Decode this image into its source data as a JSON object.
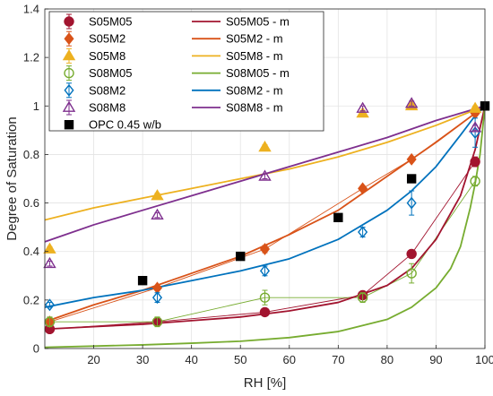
{
  "chart_data": {
    "type": "scatter",
    "xlabel": "RH [%]",
    "ylabel": "Degree of Saturation",
    "xlim": [
      10,
      100
    ],
    "ylim": [
      0,
      1.4
    ],
    "xticks": [
      20,
      30,
      40,
      50,
      60,
      70,
      80,
      90,
      100
    ],
    "yticks": [
      0,
      0.2,
      0.4,
      0.6,
      0.8,
      1,
      1.2,
      1.4
    ],
    "ytick_labels": [
      "0",
      "0.2",
      "0.4",
      "0.6",
      "0.8",
      "1",
      "1.2",
      "1.4"
    ],
    "grid": true,
    "legend_position": "top-left, two columns",
    "series": [
      {
        "name": "S05M05",
        "kind": "points",
        "marker": "circle-filled",
        "color": "#A2142F",
        "x": [
          11,
          33,
          55,
          75,
          85,
          98
        ],
        "y": [
          0.08,
          0.11,
          0.15,
          0.22,
          0.39,
          0.77
        ],
        "err": [
          0.01,
          0.01,
          0.01,
          0.01,
          0.015,
          0.02
        ]
      },
      {
        "name": "S05M05 - m",
        "kind": "line",
        "color": "#A2142F",
        "x": [
          10,
          20,
          30,
          40,
          50,
          60,
          70,
          80,
          85,
          90,
          95,
          98,
          100
        ],
        "y": [
          0.08,
          0.09,
          0.1,
          0.115,
          0.13,
          0.155,
          0.19,
          0.26,
          0.33,
          0.45,
          0.63,
          0.82,
          1.0
        ]
      },
      {
        "name": "S05M2",
        "kind": "points",
        "marker": "diamond-filled",
        "color": "#D95319",
        "x": [
          11,
          33,
          55,
          75,
          85,
          98
        ],
        "y": [
          0.11,
          0.25,
          0.41,
          0.66,
          0.78,
          0.97
        ],
        "err": [
          0.01,
          0.01,
          0.015,
          0.01,
          0.01,
          0.01
        ]
      },
      {
        "name": "S05M2 - m",
        "kind": "line",
        "color": "#D95319",
        "x": [
          10,
          20,
          30,
          40,
          50,
          60,
          70,
          80,
          90,
          100
        ],
        "y": [
          0.11,
          0.18,
          0.24,
          0.31,
          0.38,
          0.47,
          0.57,
          0.71,
          0.85,
          1.0
        ]
      },
      {
        "name": "S05M8",
        "kind": "points",
        "marker": "triangle-filled",
        "color": "#EDB120",
        "x": [
          11,
          33,
          55,
          75,
          85,
          98
        ],
        "y": [
          0.41,
          0.63,
          0.83,
          0.97,
          1.0,
          0.99
        ],
        "err": [
          0.01,
          0.01,
          0.01,
          0.01,
          0.01,
          0.01
        ]
      },
      {
        "name": "S05M8 - m",
        "kind": "line",
        "color": "#EDB120",
        "x": [
          10,
          20,
          30,
          40,
          50,
          60,
          70,
          80,
          90,
          100
        ],
        "y": [
          0.53,
          0.58,
          0.62,
          0.66,
          0.7,
          0.74,
          0.79,
          0.85,
          0.92,
          1.0
        ]
      },
      {
        "name": "S08M05",
        "kind": "points",
        "marker": "circle-open",
        "color": "#77AC30",
        "x": [
          11,
          33,
          55,
          75,
          85,
          98
        ],
        "y": [
          0.11,
          0.11,
          0.21,
          0.21,
          0.31,
          0.69
        ],
        "err": [
          0.02,
          0.02,
          0.03,
          0.02,
          0.04,
          0.02
        ]
      },
      {
        "name": "S08M05 - m",
        "kind": "line",
        "color": "#77AC30",
        "x": [
          10,
          20,
          30,
          40,
          50,
          60,
          70,
          80,
          85,
          90,
          93,
          95,
          97,
          98,
          99,
          100
        ],
        "y": [
          0.005,
          0.01,
          0.015,
          0.022,
          0.03,
          0.045,
          0.07,
          0.12,
          0.17,
          0.25,
          0.33,
          0.42,
          0.58,
          0.68,
          0.8,
          1.0
        ]
      },
      {
        "name": "S08M2",
        "kind": "points",
        "marker": "diamond-open",
        "color": "#0072BD",
        "x": [
          11,
          33,
          55,
          75,
          85,
          98
        ],
        "y": [
          0.18,
          0.21,
          0.32,
          0.48,
          0.6,
          0.89
        ],
        "err": [
          0.01,
          0.02,
          0.02,
          0.02,
          0.05,
          0.06
        ]
      },
      {
        "name": "S08M2 - m",
        "kind": "line",
        "color": "#0072BD",
        "x": [
          10,
          20,
          30,
          40,
          50,
          60,
          70,
          80,
          85,
          90,
          95,
          98,
          100
        ],
        "y": [
          0.17,
          0.21,
          0.24,
          0.28,
          0.32,
          0.37,
          0.45,
          0.57,
          0.65,
          0.75,
          0.88,
          0.96,
          1.0
        ]
      },
      {
        "name": "S08M8",
        "kind": "points",
        "marker": "triangle-open",
        "color": "#7E2F8E",
        "x": [
          11,
          33,
          55,
          75,
          85,
          98
        ],
        "y": [
          0.35,
          0.55,
          0.71,
          0.99,
          1.01,
          0.91
        ],
        "err": [
          0.01,
          0.01,
          0.01,
          0.01,
          0.01,
          0.01
        ]
      },
      {
        "name": "S08M8 - m",
        "kind": "line",
        "color": "#7E2F8E",
        "x": [
          10,
          20,
          30,
          40,
          50,
          60,
          70,
          80,
          90,
          100
        ],
        "y": [
          0.44,
          0.51,
          0.57,
          0.63,
          0.69,
          0.75,
          0.81,
          0.87,
          0.94,
          1.0
        ]
      },
      {
        "name": "OPC 0.45 w/b",
        "kind": "points",
        "marker": "square-filled",
        "color": "#000000",
        "x": [
          30,
          50,
          70,
          85,
          100
        ],
        "y": [
          0.28,
          0.38,
          0.54,
          0.7,
          1.0
        ]
      }
    ],
    "thin_connectors": [
      {
        "color": "#A2142F",
        "x": [
          11,
          33,
          55,
          75,
          85,
          98
        ],
        "y": [
          0.08,
          0.11,
          0.15,
          0.22,
          0.39,
          0.77
        ]
      },
      {
        "color": "#D95319",
        "x": [
          11,
          33,
          55,
          75,
          85,
          98
        ],
        "y": [
          0.11,
          0.25,
          0.41,
          0.66,
          0.78,
          0.97
        ]
      },
      {
        "color": "#77AC30",
        "x": [
          11,
          33,
          55,
          75,
          85,
          98
        ],
        "y": [
          0.11,
          0.11,
          0.21,
          0.21,
          0.31,
          0.69
        ]
      }
    ]
  }
}
